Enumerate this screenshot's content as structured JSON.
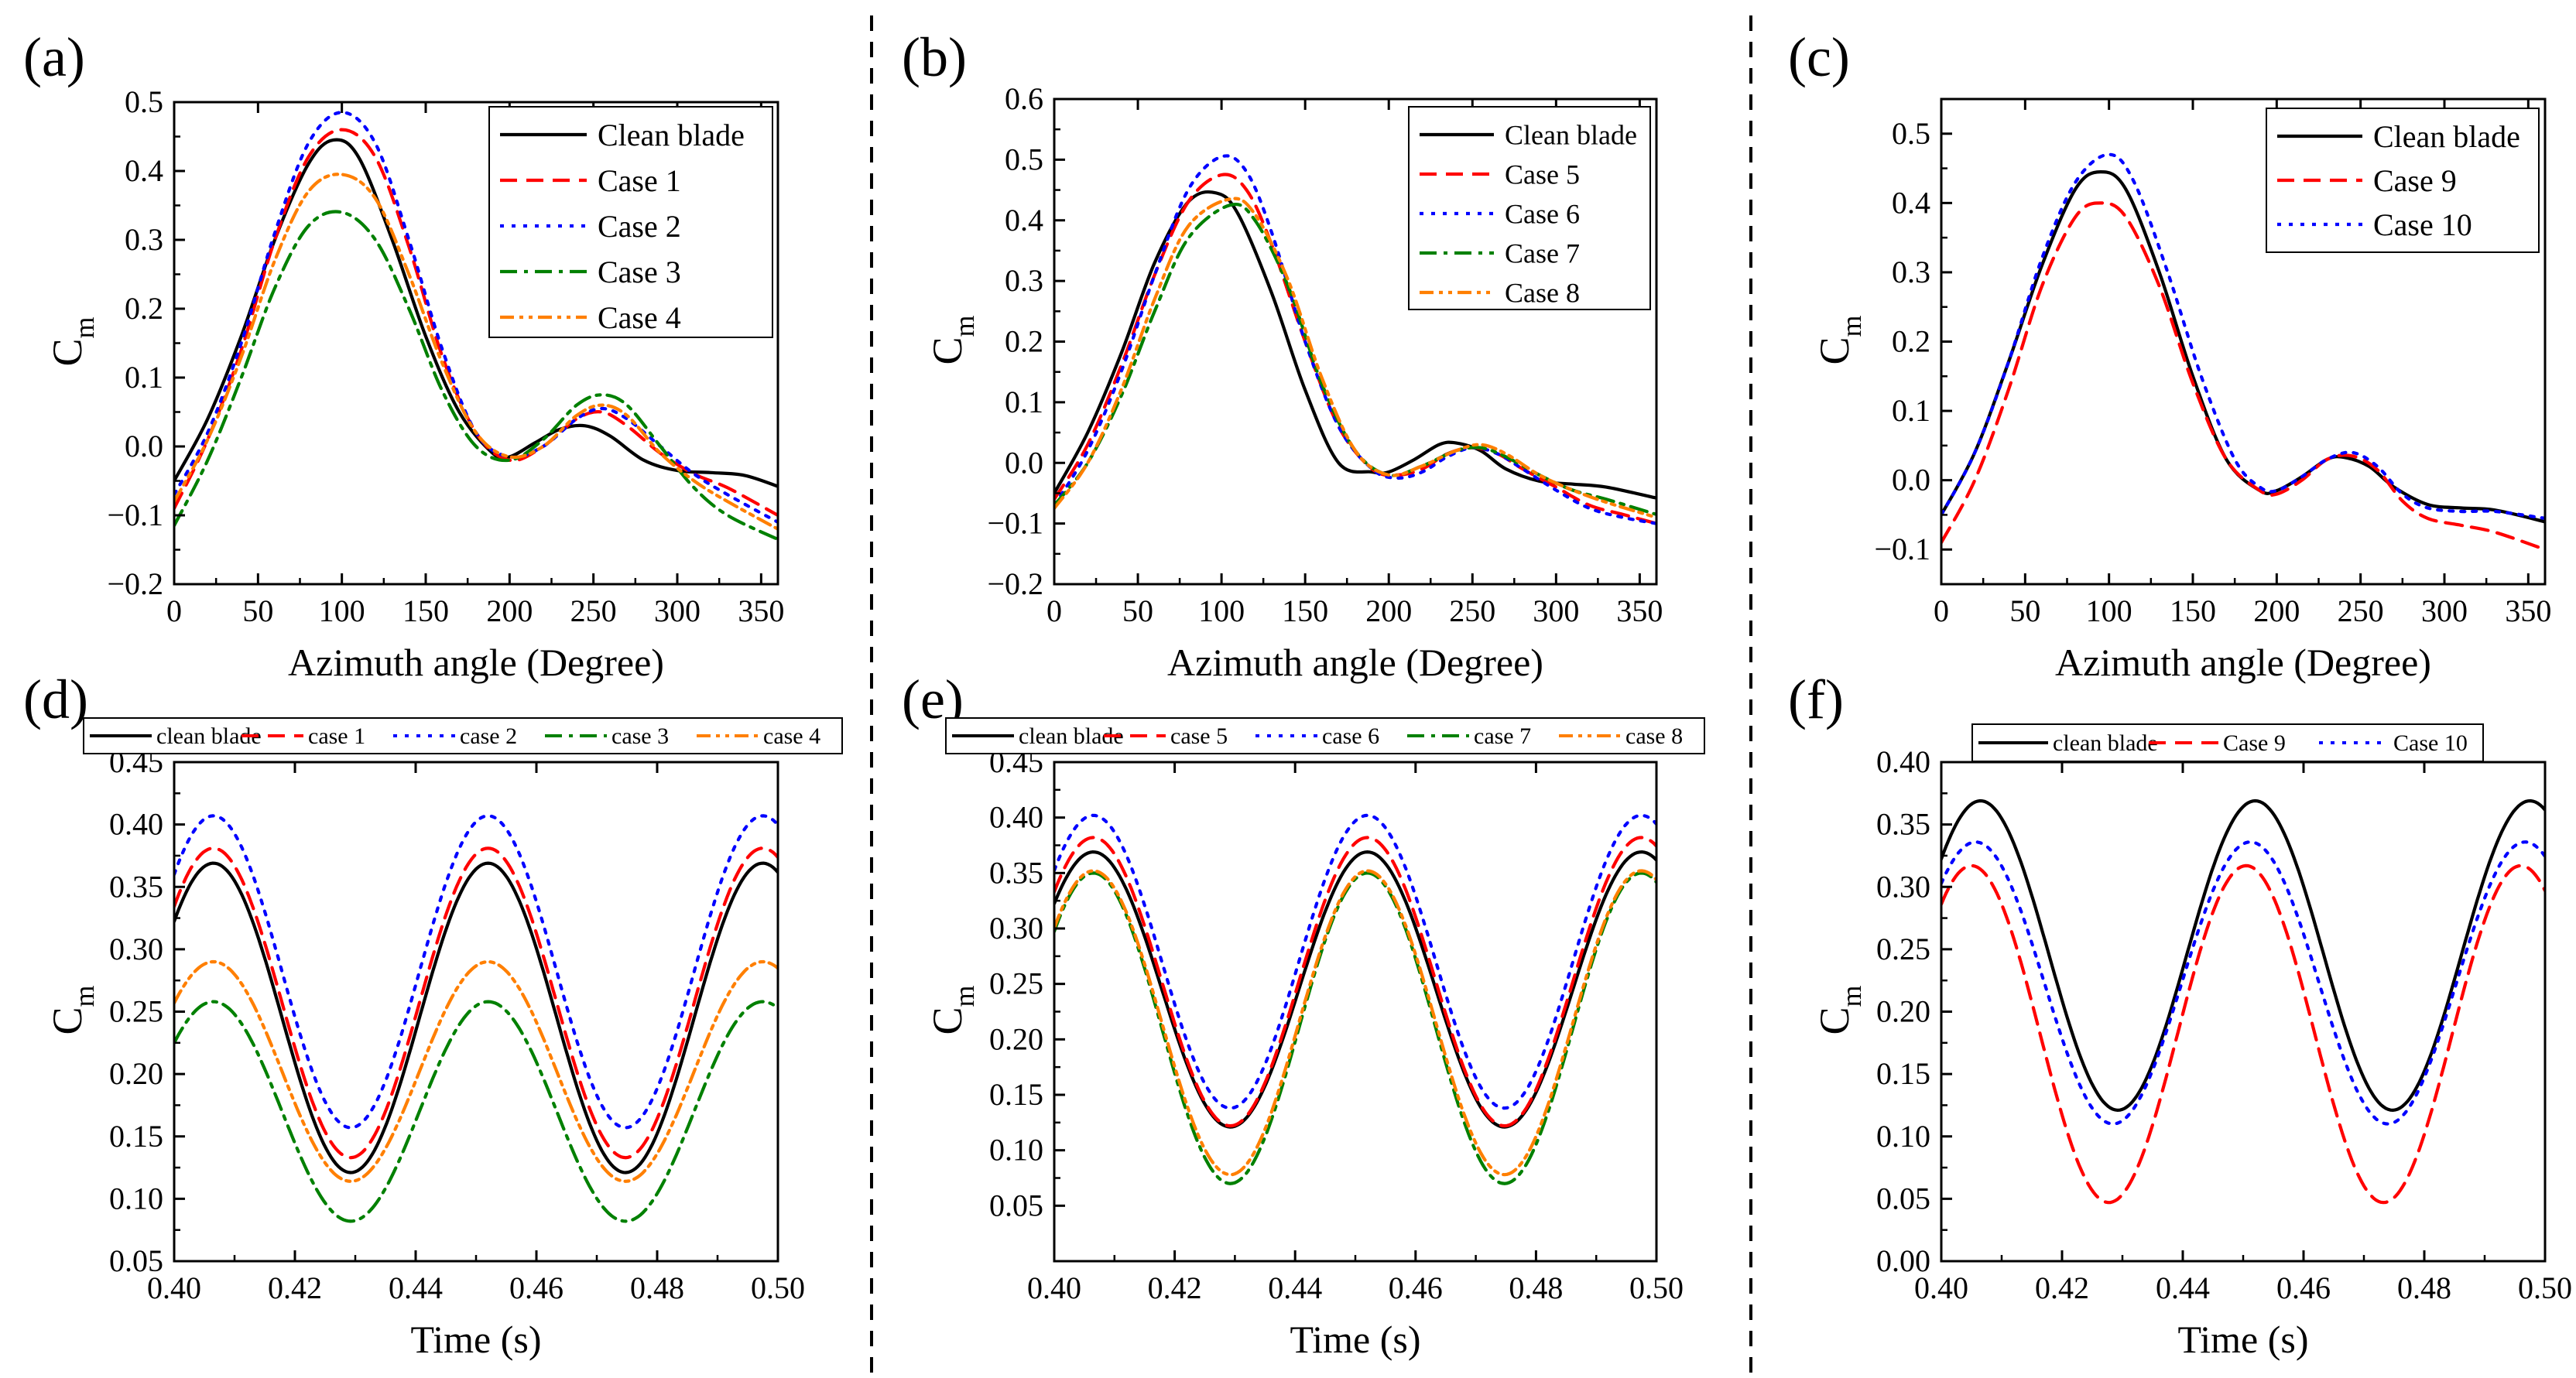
{
  "colors": {
    "clean": "#000000",
    "red": "#ff0000",
    "blue": "#0000ff",
    "green": "#008000",
    "orange": "#ff7f00"
  },
  "chart_data": [
    {
      "panel_label": "(a)",
      "type": "line",
      "xlabel": "Azimuth angle (Degree)",
      "ylabel": "C",
      "ylabel_sub": "m",
      "xlim": [
        0,
        360
      ],
      "ylim": [
        -0.2,
        0.5
      ],
      "xticks": [
        0,
        50,
        100,
        150,
        200,
        250,
        300,
        350
      ],
      "yticks": [
        -0.2,
        -0.1,
        0.0,
        0.1,
        0.2,
        0.3,
        0.4,
        0.5
      ],
      "ytick_labels": [
        "−0.2",
        "−0.1",
        "0.0",
        "0.1",
        "0.2",
        "0.3",
        "0.4",
        "0.5"
      ],
      "legend_position": "top-right",
      "series": [
        {
          "name": "Clean blade",
          "color": "clean",
          "dash": "solid",
          "x": [
            0,
            20,
            40,
            60,
            80,
            95,
            110,
            130,
            150,
            170,
            190,
            200,
            215,
            230,
            245,
            260,
            280,
            300,
            320,
            340,
            360
          ],
          "y": [
            -0.05,
            0.04,
            0.16,
            0.3,
            0.41,
            0.445,
            0.42,
            0.3,
            0.16,
            0.05,
            -0.01,
            -0.015,
            0.005,
            0.025,
            0.03,
            0.015,
            -0.02,
            -0.035,
            -0.038,
            -0.042,
            -0.058
          ]
        },
        {
          "name": "Case 1",
          "color": "red",
          "dash": "dash",
          "x": [
            0,
            20,
            40,
            60,
            80,
            100,
            120,
            140,
            160,
            180,
            200,
            220,
            240,
            255,
            270,
            290,
            310,
            330,
            360
          ],
          "y": [
            -0.09,
            0.01,
            0.14,
            0.3,
            0.42,
            0.46,
            0.42,
            0.29,
            0.13,
            0.02,
            -0.02,
            0.0,
            0.04,
            0.05,
            0.03,
            -0.01,
            -0.04,
            -0.06,
            -0.1
          ]
        },
        {
          "name": "Case 2",
          "color": "blue",
          "dash": "dot",
          "x": [
            0,
            20,
            40,
            60,
            80,
            100,
            120,
            140,
            160,
            180,
            200,
            220,
            240,
            255,
            270,
            290,
            310,
            330,
            360
          ],
          "y": [
            -0.07,
            0.02,
            0.15,
            0.31,
            0.44,
            0.485,
            0.44,
            0.3,
            0.14,
            0.02,
            -0.015,
            0.0,
            0.04,
            0.055,
            0.04,
            0.0,
            -0.04,
            -0.07,
            -0.11
          ]
        },
        {
          "name": "Case 3",
          "color": "green",
          "dash": "dashdot",
          "x": [
            0,
            20,
            40,
            60,
            80,
            100,
            120,
            140,
            160,
            180,
            200,
            220,
            240,
            255,
            270,
            290,
            310,
            330,
            360
          ],
          "y": [
            -0.115,
            -0.02,
            0.1,
            0.23,
            0.32,
            0.34,
            0.3,
            0.2,
            0.08,
            0.0,
            -0.02,
            0.01,
            0.06,
            0.075,
            0.06,
            0.0,
            -0.06,
            -0.1,
            -0.135
          ]
        },
        {
          "name": "Case 4",
          "color": "orange",
          "dash": "dashdotdot",
          "x": [
            0,
            20,
            40,
            60,
            80,
            100,
            120,
            140,
            160,
            180,
            200,
            220,
            240,
            255,
            270,
            290,
            310,
            330,
            360
          ],
          "y": [
            -0.08,
            0.01,
            0.13,
            0.27,
            0.37,
            0.395,
            0.36,
            0.25,
            0.12,
            0.02,
            -0.015,
            0.0,
            0.045,
            0.06,
            0.045,
            -0.01,
            -0.05,
            -0.08,
            -0.12
          ]
        }
      ]
    },
    {
      "panel_label": "(b)",
      "type": "line",
      "xlabel": "Azimuth angle (Degree)",
      "ylabel": "C",
      "ylabel_sub": "m",
      "xlim": [
        0,
        360
      ],
      "ylim": [
        -0.2,
        0.6
      ],
      "xticks": [
        0,
        50,
        100,
        150,
        200,
        250,
        300,
        350
      ],
      "yticks": [
        -0.2,
        -0.1,
        0.0,
        0.1,
        0.2,
        0.3,
        0.4,
        0.5,
        0.6
      ],
      "ytick_labels": [
        "−0.2",
        "−0.1",
        "0.0",
        "0.1",
        "0.2",
        "0.3",
        "0.4",
        "0.5",
        "0.6"
      ],
      "legend_position": "top-right",
      "series": [
        {
          "name": "Clean blade",
          "color": "clean",
          "dash": "solid",
          "x": [
            0,
            20,
            40,
            60,
            80,
            97,
            110,
            130,
            150,
            170,
            190,
            200,
            215,
            230,
            240,
            255,
            270,
            290,
            310,
            330,
            360
          ],
          "y": [
            -0.05,
            0.05,
            0.18,
            0.33,
            0.43,
            0.445,
            0.41,
            0.28,
            0.12,
            0.0,
            -0.015,
            -0.015,
            0.005,
            0.03,
            0.033,
            0.02,
            -0.01,
            -0.03,
            -0.035,
            -0.04,
            -0.058
          ]
        },
        {
          "name": "Case 5",
          "color": "red",
          "dash": "dash",
          "x": [
            0,
            20,
            40,
            60,
            80,
            100,
            115,
            130,
            150,
            170,
            190,
            205,
            220,
            235,
            250,
            265,
            280,
            300,
            320,
            340,
            360
          ],
          "y": [
            -0.06,
            0.03,
            0.16,
            0.31,
            0.43,
            0.475,
            0.45,
            0.36,
            0.2,
            0.06,
            -0.01,
            -0.02,
            -0.01,
            0.015,
            0.025,
            0.015,
            -0.01,
            -0.04,
            -0.07,
            -0.085,
            -0.1
          ]
        },
        {
          "name": "Case 6",
          "color": "blue",
          "dash": "dot",
          "x": [
            0,
            20,
            40,
            60,
            80,
            100,
            115,
            130,
            150,
            170,
            190,
            205,
            220,
            235,
            250,
            265,
            280,
            300,
            320,
            340,
            360
          ],
          "y": [
            -0.07,
            0.02,
            0.15,
            0.31,
            0.45,
            0.505,
            0.48,
            0.38,
            0.2,
            0.06,
            -0.01,
            -0.025,
            -0.015,
            0.01,
            0.025,
            0.015,
            -0.01,
            -0.045,
            -0.075,
            -0.09,
            -0.1
          ]
        },
        {
          "name": "Case 7",
          "color": "green",
          "dash": "dashdot",
          "x": [
            0,
            20,
            40,
            60,
            80,
            105,
            120,
            140,
            160,
            180,
            200,
            220,
            240,
            255,
            270,
            290,
            310,
            330,
            360
          ],
          "y": [
            -0.07,
            0.0,
            0.11,
            0.25,
            0.37,
            0.425,
            0.4,
            0.29,
            0.13,
            0.02,
            -0.02,
            -0.005,
            0.02,
            0.025,
            0.01,
            -0.02,
            -0.045,
            -0.06,
            -0.085
          ]
        },
        {
          "name": "Case 8",
          "color": "orange",
          "dash": "dashdotdot",
          "x": [
            0,
            20,
            40,
            60,
            80,
            105,
            120,
            140,
            160,
            180,
            200,
            220,
            240,
            255,
            270,
            290,
            310,
            330,
            360
          ],
          "y": [
            -0.075,
            0.0,
            0.12,
            0.27,
            0.39,
            0.435,
            0.41,
            0.3,
            0.14,
            0.02,
            -0.02,
            -0.005,
            0.02,
            0.03,
            0.015,
            -0.02,
            -0.045,
            -0.065,
            -0.09
          ]
        }
      ]
    },
    {
      "panel_label": "(c)",
      "type": "line",
      "xlabel": "Azimuth angle (Degree)",
      "ylabel": "C",
      "ylabel_sub": "m",
      "xlim": [
        0,
        360
      ],
      "ylim": [
        -0.15,
        0.55
      ],
      "xticks": [
        0,
        50,
        100,
        150,
        200,
        250,
        300,
        350
      ],
      "yticks": [
        -0.1,
        0.0,
        0.1,
        0.2,
        0.3,
        0.4,
        0.5
      ],
      "ytick_labels": [
        "−0.1",
        "0.0",
        "0.1",
        "0.2",
        "0.3",
        "0.4",
        "0.5"
      ],
      "legend_position": "top-right",
      "series": [
        {
          "name": "Clean blade",
          "color": "clean",
          "dash": "solid",
          "x": [
            0,
            20,
            40,
            60,
            80,
            95,
            110,
            130,
            150,
            170,
            190,
            200,
            215,
            230,
            240,
            255,
            270,
            290,
            310,
            330,
            360
          ],
          "y": [
            -0.05,
            0.04,
            0.17,
            0.31,
            0.42,
            0.445,
            0.42,
            0.3,
            0.15,
            0.03,
            -0.015,
            -0.015,
            0.005,
            0.03,
            0.033,
            0.02,
            -0.01,
            -0.035,
            -0.04,
            -0.043,
            -0.06
          ]
        },
        {
          "name": "Case 9",
          "color": "red",
          "dash": "dash",
          "x": [
            0,
            20,
            40,
            60,
            80,
            95,
            110,
            130,
            150,
            170,
            190,
            200,
            215,
            230,
            245,
            260,
            275,
            290,
            310,
            330,
            360
          ],
          "y": [
            -0.09,
            0.0,
            0.13,
            0.28,
            0.38,
            0.4,
            0.38,
            0.28,
            0.14,
            0.03,
            -0.015,
            -0.02,
            0.0,
            0.03,
            0.035,
            0.015,
            -0.03,
            -0.055,
            -0.065,
            -0.075,
            -0.1
          ]
        },
        {
          "name": "Case 10",
          "color": "blue",
          "dash": "dot",
          "x": [
            0,
            20,
            40,
            60,
            80,
            100,
            115,
            135,
            155,
            175,
            190,
            200,
            215,
            230,
            245,
            260,
            275,
            290,
            310,
            330,
            360
          ],
          "y": [
            -0.05,
            0.04,
            0.17,
            0.32,
            0.43,
            0.47,
            0.43,
            0.3,
            0.15,
            0.03,
            -0.01,
            -0.015,
            0.005,
            0.03,
            0.04,
            0.02,
            -0.02,
            -0.04,
            -0.045,
            -0.045,
            -0.055
          ]
        }
      ]
    },
    {
      "panel_label": "(d)",
      "type": "line",
      "xlabel": "Time (s)",
      "ylabel": "C",
      "ylabel_sub": "m",
      "xlim": [
        0.4,
        0.5
      ],
      "ylim": [
        0.05,
        0.45
      ],
      "xticks": [
        0.4,
        0.42,
        0.44,
        0.46,
        0.48,
        0.5
      ],
      "xtick_labels": [
        "0.40",
        "0.42",
        "0.44",
        "0.46",
        "0.48",
        "0.50"
      ],
      "yticks": [
        0.05,
        0.1,
        0.15,
        0.2,
        0.25,
        0.3,
        0.35,
        0.4,
        0.45
      ],
      "ytick_labels": [
        "0.05",
        "0.10",
        "0.15",
        "0.20",
        "0.25",
        "0.30",
        "0.35",
        "0.40",
        "0.45"
      ],
      "legend_position": "top",
      "series": [
        {
          "name": "clean blade",
          "color": "clean",
          "dash": "solid",
          "mean": 0.245,
          "amp": 0.124,
          "phase": 0
        },
        {
          "name": "case 1",
          "color": "red",
          "dash": "dash",
          "mean": 0.257,
          "amp": 0.124,
          "phase": 0
        },
        {
          "name": "case 2",
          "color": "blue",
          "dash": "dot",
          "mean": 0.282,
          "amp": 0.125,
          "phase": 0
        },
        {
          "name": "case 3",
          "color": "green",
          "dash": "dashdot",
          "mean": 0.17,
          "amp": 0.088,
          "phase": 0
        },
        {
          "name": "case 4",
          "color": "orange",
          "dash": "dashdotdot",
          "mean": 0.202,
          "amp": 0.088,
          "phase": 0
        }
      ]
    },
    {
      "panel_label": "(e)",
      "type": "line",
      "xlabel": "Time (s)",
      "ylabel": "C",
      "ylabel_sub": "m",
      "xlim": [
        0.4,
        0.5
      ],
      "ylim": [
        0.0,
        0.45
      ],
      "xticks": [
        0.4,
        0.42,
        0.44,
        0.46,
        0.48,
        0.5
      ],
      "xtick_labels": [
        "0.40",
        "0.42",
        "0.44",
        "0.46",
        "0.48",
        "0.50"
      ],
      "yticks": [
        0.05,
        0.1,
        0.15,
        0.2,
        0.25,
        0.3,
        0.35,
        0.4,
        0.45
      ],
      "ytick_labels": [
        "0.05",
        "0.10",
        "0.15",
        "0.20",
        "0.25",
        "0.30",
        "0.35",
        "0.40",
        "0.45"
      ],
      "legend_position": "top",
      "series": [
        {
          "name": "clean blade",
          "color": "clean",
          "dash": "solid",
          "mean": 0.245,
          "amp": 0.124,
          "phase": 0
        },
        {
          "name": "case 5",
          "color": "red",
          "dash": "dash",
          "mean": 0.252,
          "amp": 0.13,
          "phase": 0
        },
        {
          "name": "case 6",
          "color": "blue",
          "dash": "dot",
          "mean": 0.27,
          "amp": 0.132,
          "phase": 0
        },
        {
          "name": "case 7",
          "color": "green",
          "dash": "dashdot",
          "mean": 0.21,
          "amp": 0.14,
          "phase": 0
        },
        {
          "name": "case 8",
          "color": "orange",
          "dash": "dashdotdot",
          "mean": 0.215,
          "amp": 0.137,
          "phase": 0
        }
      ]
    },
    {
      "panel_label": "(f)",
      "type": "line",
      "xlabel": "Time (s)",
      "ylabel": "C",
      "ylabel_sub": "m",
      "xlim": [
        0.4,
        0.5
      ],
      "ylim": [
        0.0,
        0.4
      ],
      "xticks": [
        0.4,
        0.42,
        0.44,
        0.46,
        0.48,
        0.5
      ],
      "xtick_labels": [
        "0.40",
        "0.42",
        "0.44",
        "0.46",
        "0.48",
        "0.50"
      ],
      "yticks": [
        0.0,
        0.05,
        0.1,
        0.15,
        0.2,
        0.25,
        0.3,
        0.35,
        0.4
      ],
      "ytick_labels": [
        "0.00",
        "0.05",
        "0.10",
        "0.15",
        "0.20",
        "0.25",
        "0.30",
        "0.35",
        "0.40"
      ],
      "legend_position": "top",
      "series": [
        {
          "name": "clean blade",
          "color": "clean",
          "dash": "solid",
          "mean": 0.245,
          "amp": 0.124,
          "phase": 0
        },
        {
          "name": "Case 9",
          "color": "red",
          "dash": "dash",
          "mean": 0.182,
          "amp": 0.135,
          "phase": -0.0015
        },
        {
          "name": "Case 10",
          "color": "blue",
          "dash": "dot",
          "mean": 0.223,
          "amp": 0.113,
          "phase": -0.0008
        }
      ]
    }
  ]
}
